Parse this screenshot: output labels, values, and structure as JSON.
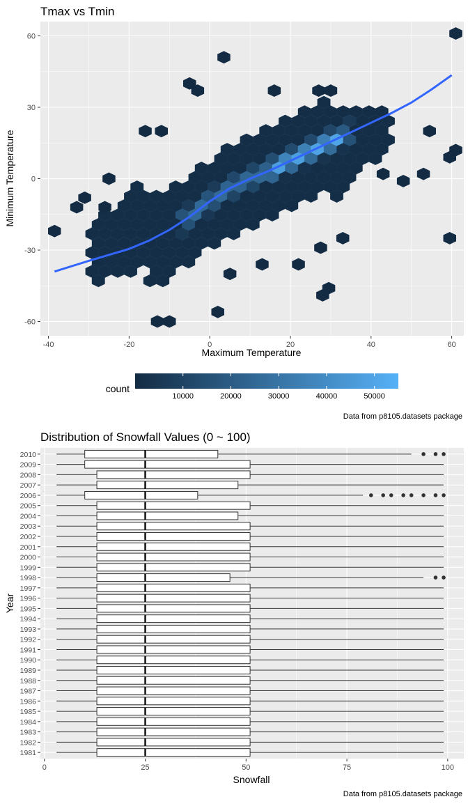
{
  "chart_data": [
    {
      "type": "hexbin",
      "title": "Tmax vs Tmin",
      "xlabel": "Maximum Temperature",
      "ylabel": "Minimum Temperature",
      "xlim": [
        -42,
        63
      ],
      "ylim": [
        -66,
        66
      ],
      "x_ticks": [
        -40,
        -20,
        0,
        20,
        40,
        60
      ],
      "y_ticks": [
        -60,
        -30,
        0,
        30,
        60
      ],
      "grid": true,
      "legend": {
        "title": "count",
        "position": "bottom",
        "range": [
          0,
          55000
        ],
        "ticks": [
          10000,
          20000,
          30000,
          40000,
          50000
        ],
        "colors": [
          "#132B43",
          "#56B1F7"
        ]
      },
      "smooth_curve": {
        "color": "#3366FF",
        "x": [
          -38.5,
          -30,
          -20,
          -15,
          -10,
          -5,
          0,
          5,
          10,
          15,
          20,
          25,
          30,
          35,
          40,
          45,
          50,
          55,
          60
        ],
        "y": [
          -39,
          -34.5,
          -29.5,
          -26,
          -21.5,
          -16,
          -9.5,
          -4,
          0,
          3.5,
          7.5,
          11.5,
          15.5,
          19.5,
          23.5,
          27.5,
          32,
          37.5,
          43.5
        ]
      },
      "core_region": {
        "x_range": [
          -30,
          45
        ],
        "y_offset_range": [
          -16,
          16
        ],
        "peak_count": 55000
      },
      "outliers": [
        {
          "x": -38.5,
          "y": -22
        },
        {
          "x": -31,
          "y": -8
        },
        {
          "x": -33,
          "y": -12
        },
        {
          "x": -26,
          "y": -12
        },
        {
          "x": -25,
          "y": 0
        },
        {
          "x": -16,
          "y": 20
        },
        {
          "x": -12,
          "y": 20
        },
        {
          "x": -5,
          "y": 40
        },
        {
          "x": -3,
          "y": 37
        },
        {
          "x": 3.5,
          "y": 51
        },
        {
          "x": 2,
          "y": -56
        },
        {
          "x": -13,
          "y": -60
        },
        {
          "x": -10,
          "y": -60
        },
        {
          "x": 28,
          "y": -49
        },
        {
          "x": 29.5,
          "y": -46
        },
        {
          "x": 5,
          "y": -40
        },
        {
          "x": 13,
          "y": -36
        },
        {
          "x": 22,
          "y": -36
        },
        {
          "x": 27.5,
          "y": -29
        },
        {
          "x": 33,
          "y": -25
        },
        {
          "x": 16,
          "y": 37
        },
        {
          "x": 27,
          "y": 37
        },
        {
          "x": 30,
          "y": 37
        },
        {
          "x": 43,
          "y": 2
        },
        {
          "x": 48,
          "y": -1
        },
        {
          "x": 53,
          "y": 2
        },
        {
          "x": 54.5,
          "y": 20
        },
        {
          "x": 59.5,
          "y": 9
        },
        {
          "x": 61,
          "y": 12
        },
        {
          "x": 61,
          "y": 61
        },
        {
          "x": 59.5,
          "y": -25
        }
      ],
      "caption": "Data from p8105.datasets package"
    },
    {
      "type": "boxplot",
      "orientation": "horizontal",
      "title": "Distribution of Snowfall Values (0 ~ 100)",
      "xlabel": "Snowfall",
      "ylabel": "Year",
      "xlim": [
        -1,
        104
      ],
      "x_ticks": [
        0,
        25,
        50,
        75,
        100
      ],
      "grid": true,
      "categories": [
        "1981",
        "1982",
        "1983",
        "1984",
        "1985",
        "1986",
        "1987",
        "1988",
        "1989",
        "1990",
        "1991",
        "1992",
        "1993",
        "1994",
        "1995",
        "1996",
        "1997",
        "1998",
        "1999",
        "2000",
        "2001",
        "2002",
        "2003",
        "2004",
        "2005",
        "2006",
        "2007",
        "2008",
        "2009",
        "2010"
      ],
      "series": [
        {
          "year": "1981",
          "min": 3,
          "q1": 13,
          "median": 25,
          "q3": 51,
          "max": 99,
          "outliers": []
        },
        {
          "year": "1982",
          "min": 3,
          "q1": 13,
          "median": 25,
          "q3": 51,
          "max": 99,
          "outliers": []
        },
        {
          "year": "1983",
          "min": 3,
          "q1": 13,
          "median": 25,
          "q3": 51,
          "max": 99,
          "outliers": []
        },
        {
          "year": "1984",
          "min": 3,
          "q1": 13,
          "median": 25,
          "q3": 51,
          "max": 99,
          "outliers": []
        },
        {
          "year": "1985",
          "min": 3,
          "q1": 13,
          "median": 25,
          "q3": 51,
          "max": 99,
          "outliers": []
        },
        {
          "year": "1986",
          "min": 3,
          "q1": 13,
          "median": 25,
          "q3": 51,
          "max": 99,
          "outliers": []
        },
        {
          "year": "1987",
          "min": 3,
          "q1": 13,
          "median": 25,
          "q3": 51,
          "max": 99,
          "outliers": []
        },
        {
          "year": "1988",
          "min": 3,
          "q1": 13,
          "median": 25,
          "q3": 51,
          "max": 99,
          "outliers": []
        },
        {
          "year": "1989",
          "min": 3,
          "q1": 13,
          "median": 25,
          "q3": 51,
          "max": 99,
          "outliers": []
        },
        {
          "year": "1990",
          "min": 3,
          "q1": 13,
          "median": 25,
          "q3": 51,
          "max": 99,
          "outliers": []
        },
        {
          "year": "1991",
          "min": 3,
          "q1": 13,
          "median": 25,
          "q3": 51,
          "max": 99,
          "outliers": []
        },
        {
          "year": "1992",
          "min": 3,
          "q1": 13,
          "median": 25,
          "q3": 51,
          "max": 99,
          "outliers": []
        },
        {
          "year": "1993",
          "min": 3,
          "q1": 13,
          "median": 25,
          "q3": 51,
          "max": 99,
          "outliers": []
        },
        {
          "year": "1994",
          "min": 3,
          "q1": 13,
          "median": 25,
          "q3": 51,
          "max": 99,
          "outliers": []
        },
        {
          "year": "1995",
          "min": 3,
          "q1": 13,
          "median": 25,
          "q3": 51,
          "max": 99,
          "outliers": []
        },
        {
          "year": "1996",
          "min": 3,
          "q1": 13,
          "median": 25,
          "q3": 51,
          "max": 99,
          "outliers": []
        },
        {
          "year": "1997",
          "min": 3,
          "q1": 13,
          "median": 25,
          "q3": 51,
          "max": 99,
          "outliers": []
        },
        {
          "year": "1998",
          "min": 3,
          "q1": 13,
          "median": 25,
          "q3": 46,
          "max": 94,
          "outliers": [
            97,
            99
          ]
        },
        {
          "year": "1999",
          "min": 3,
          "q1": 13,
          "median": 25,
          "q3": 51,
          "max": 99,
          "outliers": []
        },
        {
          "year": "2000",
          "min": 3,
          "q1": 13,
          "median": 25,
          "q3": 51,
          "max": 99,
          "outliers": []
        },
        {
          "year": "2001",
          "min": 3,
          "q1": 13,
          "median": 25,
          "q3": 51,
          "max": 99,
          "outliers": []
        },
        {
          "year": "2002",
          "min": 3,
          "q1": 13,
          "median": 25,
          "q3": 51,
          "max": 99,
          "outliers": []
        },
        {
          "year": "2003",
          "min": 3,
          "q1": 13,
          "median": 25,
          "q3": 51,
          "max": 99,
          "outliers": []
        },
        {
          "year": "2004",
          "min": 3,
          "q1": 13,
          "median": 25,
          "q3": 48,
          "max": 99,
          "outliers": []
        },
        {
          "year": "2005",
          "min": 3,
          "q1": 13,
          "median": 25,
          "q3": 51,
          "max": 99,
          "outliers": []
        },
        {
          "year": "2006",
          "min": 3,
          "q1": 10,
          "median": 25,
          "q3": 38,
          "max": 79,
          "outliers": [
            81,
            84,
            86,
            89,
            91,
            94,
            97,
            99
          ]
        },
        {
          "year": "2007",
          "min": 3,
          "q1": 13,
          "median": 25,
          "q3": 48,
          "max": 99,
          "outliers": []
        },
        {
          "year": "2008",
          "min": 3,
          "q1": 13,
          "median": 25,
          "q3": 51,
          "max": 99,
          "outliers": []
        },
        {
          "year": "2009",
          "min": 3,
          "q1": 10,
          "median": 25,
          "q3": 51,
          "max": 99,
          "outliers": []
        },
        {
          "year": "2010",
          "min": 3,
          "q1": 10,
          "median": 25,
          "q3": 43,
          "max": 91,
          "outliers": [
            94,
            97,
            99
          ]
        }
      ],
      "caption": "Data from p8105.datasets package"
    }
  ]
}
